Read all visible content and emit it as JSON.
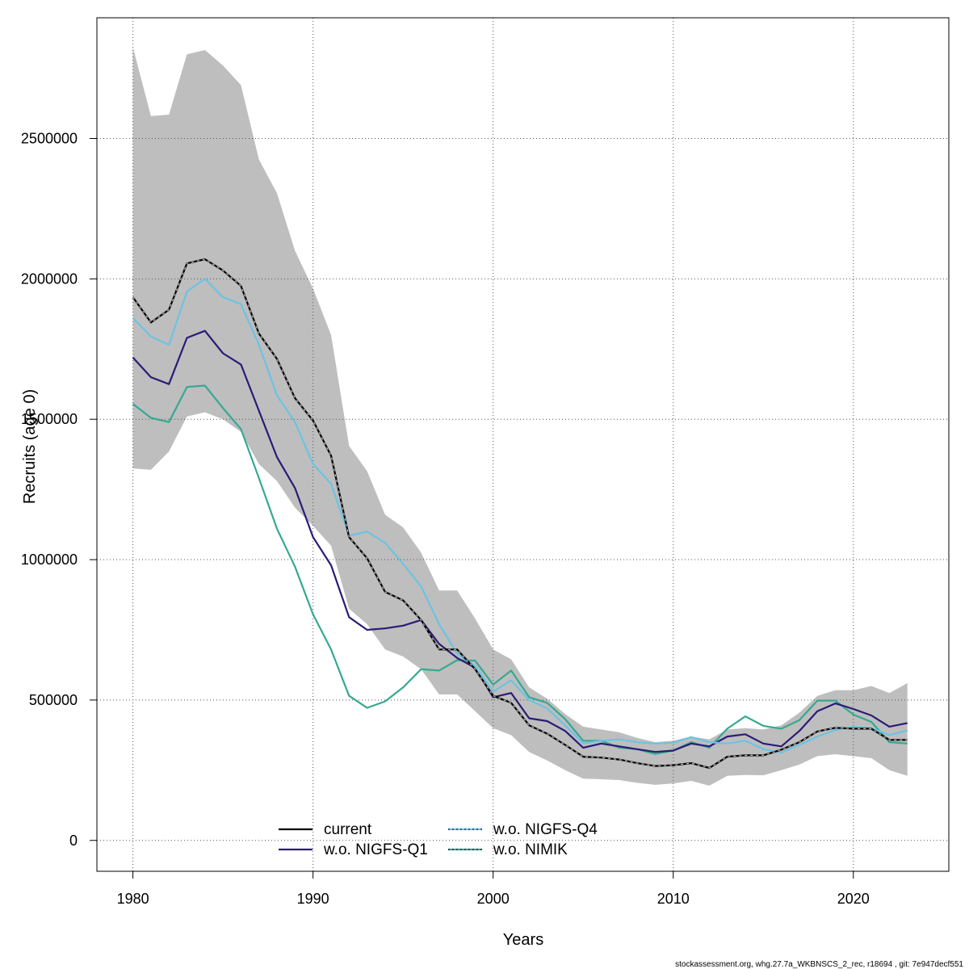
{
  "chart_data": {
    "type": "line",
    "xlabel": "Years",
    "ylabel": "Recruits (age 0)",
    "xlim": [
      1978,
      2025.3
    ],
    "ylim": [
      -110000,
      2930000
    ],
    "xticks": [
      1980,
      1990,
      2000,
      2010,
      2020
    ],
    "yticks": [
      0,
      500000,
      1000000,
      1500000,
      2000000,
      2500000
    ],
    "grid": true,
    "legend_placement": "bottom-center",
    "footer": "stockassessment.org, whg.27.7a_WKBNSCS_2_rec, r18694 , git: 7e947decf551",
    "x": [
      1980,
      1981,
      1982,
      1983,
      1984,
      1985,
      1986,
      1987,
      1988,
      1989,
      1990,
      1991,
      1992,
      1993,
      1994,
      1995,
      1996,
      1997,
      1998,
      1999,
      2000,
      2001,
      2002,
      2003,
      2004,
      2005,
      2006,
      2007,
      2008,
      2009,
      2010,
      2011,
      2012,
      2013,
      2014,
      2015,
      2016,
      2017,
      2018,
      2019,
      2020,
      2021,
      2022,
      2023
    ],
    "confidence_band": {
      "color": "#bebebe",
      "upper": [
        2825000,
        2580000,
        2585000,
        2800000,
        2815000,
        2760000,
        2690000,
        2425000,
        2305000,
        2100000,
        1965000,
        1800000,
        1405000,
        1315000,
        1160000,
        1115000,
        1025000,
        890000,
        890000,
        790000,
        680000,
        645000,
        545000,
        505000,
        450000,
        405000,
        395000,
        385000,
        365000,
        350000,
        355000,
        370000,
        360000,
        395000,
        400000,
        395000,
        410000,
        455000,
        515000,
        535000,
        535000,
        550000,
        525000,
        560000
      ],
      "lower": [
        1325000,
        1320000,
        1385000,
        1510000,
        1525000,
        1500000,
        1455000,
        1340000,
        1280000,
        1185000,
        1120000,
        1050000,
        825000,
        770000,
        680000,
        655000,
        610000,
        520000,
        520000,
        460000,
        400000,
        375000,
        315000,
        285000,
        250000,
        220000,
        218000,
        215000,
        205000,
        198000,
        203000,
        212000,
        195000,
        230000,
        233000,
        232000,
        250000,
        270000,
        300000,
        307000,
        300000,
        293000,
        250000,
        230000
      ]
    },
    "series": [
      {
        "name": "current",
        "color": "#000000",
        "dash": "solid",
        "values": [
          1935000,
          1845000,
          1890000,
          2055000,
          2070000,
          2030000,
          1975000,
          1805000,
          1715000,
          1575000,
          1495000,
          1370000,
          1080000,
          1005000,
          885000,
          855000,
          785000,
          680000,
          680000,
          610000,
          515000,
          490000,
          410000,
          380000,
          340000,
          298000,
          295000,
          288000,
          275000,
          265000,
          268000,
          275000,
          258000,
          298000,
          303000,
          303000,
          323000,
          350000,
          388000,
          401000,
          398000,
          398000,
          358000,
          358000
        ]
      },
      {
        "name": "w.o. NIGFS-Q1",
        "color": "#2b1b78",
        "dash": "solid",
        "values": [
          1720000,
          1650000,
          1625000,
          1790000,
          1815000,
          1735000,
          1695000,
          1530000,
          1365000,
          1255000,
          1080000,
          980000,
          795000,
          750000,
          755000,
          765000,
          785000,
          700000,
          650000,
          615000,
          510000,
          525000,
          435000,
          425000,
          390000,
          330000,
          345000,
          335000,
          325000,
          315000,
          320000,
          345000,
          335000,
          370000,
          378000,
          345000,
          335000,
          390000,
          460000,
          488000,
          468000,
          445000,
          405000,
          418000
        ]
      },
      {
        "name": "w.o. NIGFS-Q4",
        "color": "#6cc3e3",
        "dash": "solid",
        "values": [
          1860000,
          1795000,
          1765000,
          1955000,
          2000000,
          1935000,
          1910000,
          1765000,
          1585000,
          1490000,
          1340000,
          1270000,
          1085000,
          1100000,
          1060000,
          985000,
          905000,
          770000,
          665000,
          620000,
          530000,
          570000,
          500000,
          470000,
          410000,
          345000,
          355000,
          360000,
          350000,
          345000,
          348000,
          368000,
          350000,
          345000,
          355000,
          325000,
          313000,
          340000,
          370000,
          393000,
          405000,
          400000,
          375000,
          392000
        ]
      },
      {
        "name": "w.o. NIMIK",
        "color": "#36a991",
        "dash": "solid",
        "values": [
          1555000,
          1505000,
          1490000,
          1615000,
          1620000,
          1540000,
          1465000,
          1290000,
          1110000,
          975000,
          805000,
          680000,
          515000,
          472000,
          495000,
          545000,
          610000,
          605000,
          642000,
          640000,
          555000,
          605000,
          510000,
          490000,
          432000,
          355000,
          355000,
          330000,
          325000,
          308000,
          320000,
          350000,
          330000,
          398000,
          442000,
          408000,
          398000,
          428000,
          498000,
          498000,
          448000,
          422000,
          350000,
          345000
        ]
      }
    ]
  },
  "legend": {
    "items": [
      {
        "label": "current",
        "color": "#000000"
      },
      {
        "label": "w.o. NIGFS-Q1",
        "color": "#2b1b78"
      },
      {
        "label": "w.o. NIGFS-Q4",
        "color": "#6cc3e3"
      },
      {
        "label": "w.o. NIMIK",
        "color": "#36a991"
      }
    ]
  }
}
